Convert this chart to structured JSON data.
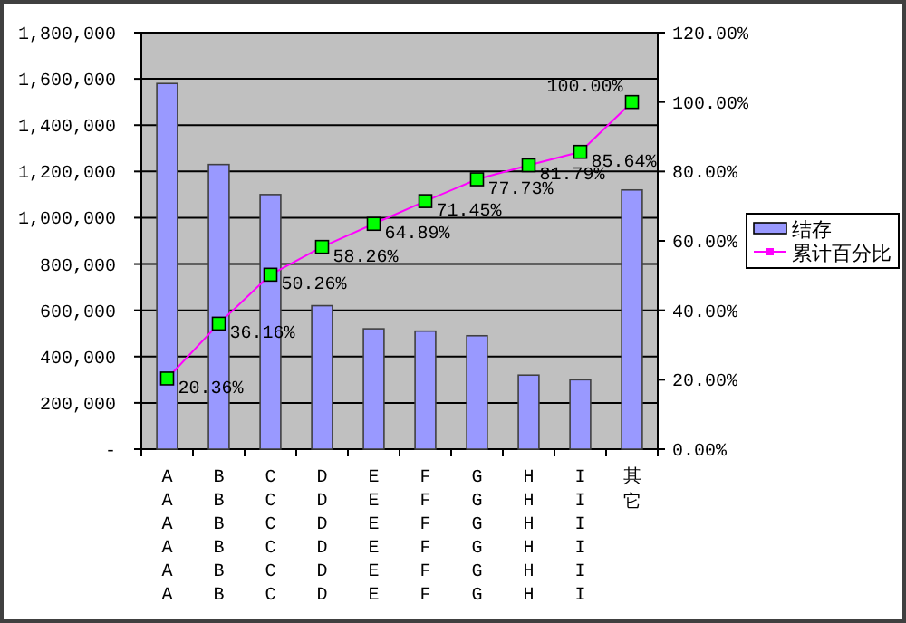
{
  "chart_data": {
    "type": "bar",
    "categories": [
      "AAAAAA",
      "BBBBBB",
      "CCCCCC",
      "DDDDDD",
      "EEEEEE",
      "FFFFFF",
      "GGGGGG",
      "HHHHHH",
      "IIIIII",
      "其它"
    ],
    "series": [
      {
        "name": "结存",
        "color": "#9999ff",
        "values": [
          1580000,
          1230000,
          1100000,
          620000,
          520000,
          510000,
          490000,
          320000,
          300000,
          1120000
        ]
      },
      {
        "name": "累计百分比",
        "type": "line",
        "axis": "y2",
        "color": "#ff00ff",
        "marker": "square",
        "values": [
          20.36,
          36.16,
          50.26,
          58.26,
          64.89,
          71.45,
          77.73,
          81.79,
          85.64,
          100
        ],
        "value_labels": [
          "20.36%",
          "36.16%",
          "50.26%",
          "58.26%",
          "64.89%",
          "71.45%",
          "77.73%",
          "81.79%",
          "85.64%",
          "100.00%"
        ]
      }
    ],
    "ylim": [
      0,
      1800000
    ],
    "yticks": [
      {
        "value": 0,
        "label": "-"
      },
      {
        "value": 200000,
        "label": "200,000"
      },
      {
        "value": 400000,
        "label": "400,000"
      },
      {
        "value": 600000,
        "label": "600,000"
      },
      {
        "value": 800000,
        "label": "800,000"
      },
      {
        "value": 1000000,
        "label": "1,000,000"
      },
      {
        "value": 1200000,
        "label": "1,200,000"
      },
      {
        "value": 1400000,
        "label": "1,400,000"
      },
      {
        "value": 1600000,
        "label": "1,600,000"
      },
      {
        "value": 1800000,
        "label": "1,800,000"
      }
    ],
    "y2lim": [
      0,
      120
    ],
    "y2ticks": [
      {
        "value": 0,
        "label": "0.00%"
      },
      {
        "value": 20,
        "label": "20.00%"
      },
      {
        "value": 40,
        "label": "40.00%"
      },
      {
        "value": 60,
        "label": "60.00%"
      },
      {
        "value": 80,
        "label": "80.00%"
      },
      {
        "value": 100,
        "label": "100.00%"
      },
      {
        "value": 120,
        "label": "120.00%"
      }
    ],
    "grid": "y",
    "legend": "right"
  }
}
